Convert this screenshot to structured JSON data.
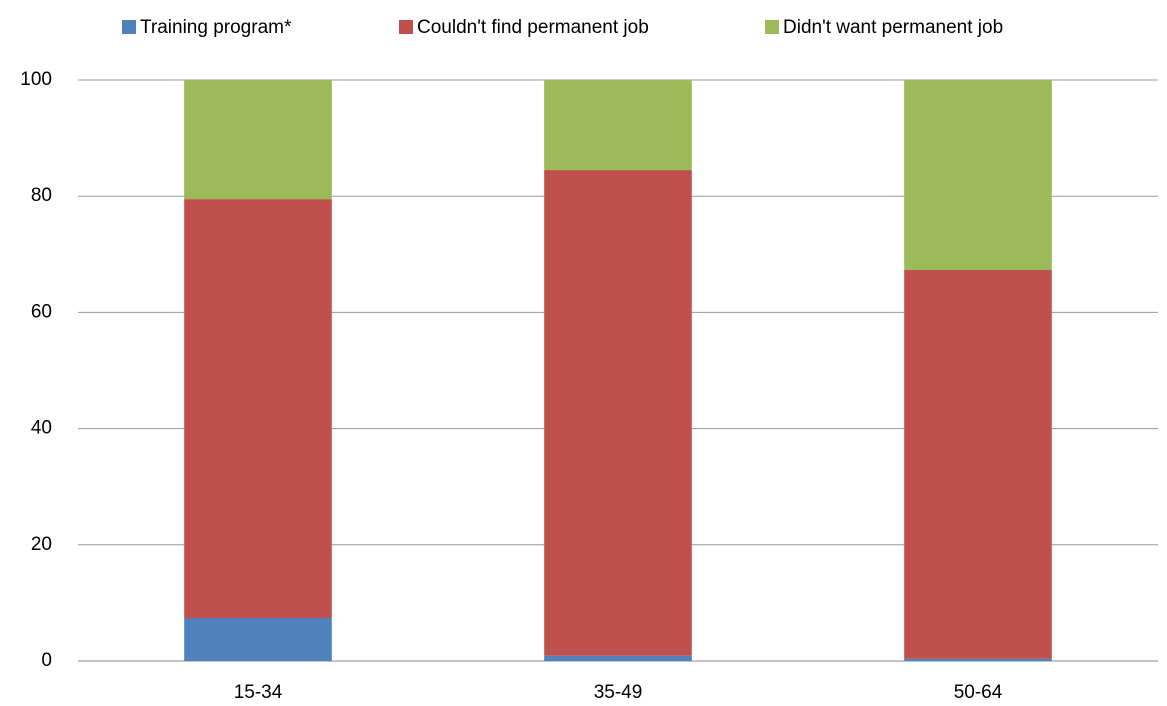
{
  "chart_data": {
    "type": "stacked_bar",
    "categories": [
      "15-34",
      "35-49",
      "50-64"
    ],
    "series": [
      {
        "name": "Training program*",
        "color": "#4f81bd",
        "values": [
          7.4,
          0.9,
          0.4
        ]
      },
      {
        "name": "Couldn't find permanent job",
        "color": "#c0504d",
        "values": [
          72.1,
          83.6,
          66.9
        ]
      },
      {
        "name": "Didn't want permanent job",
        "color": "#9bbb59",
        "values": [
          20.5,
          15.5,
          32.7
        ]
      }
    ],
    "ylim": [
      0,
      100
    ],
    "yticks": [
      0,
      20,
      40,
      60,
      80,
      100
    ],
    "grid": true,
    "legend": "top"
  }
}
